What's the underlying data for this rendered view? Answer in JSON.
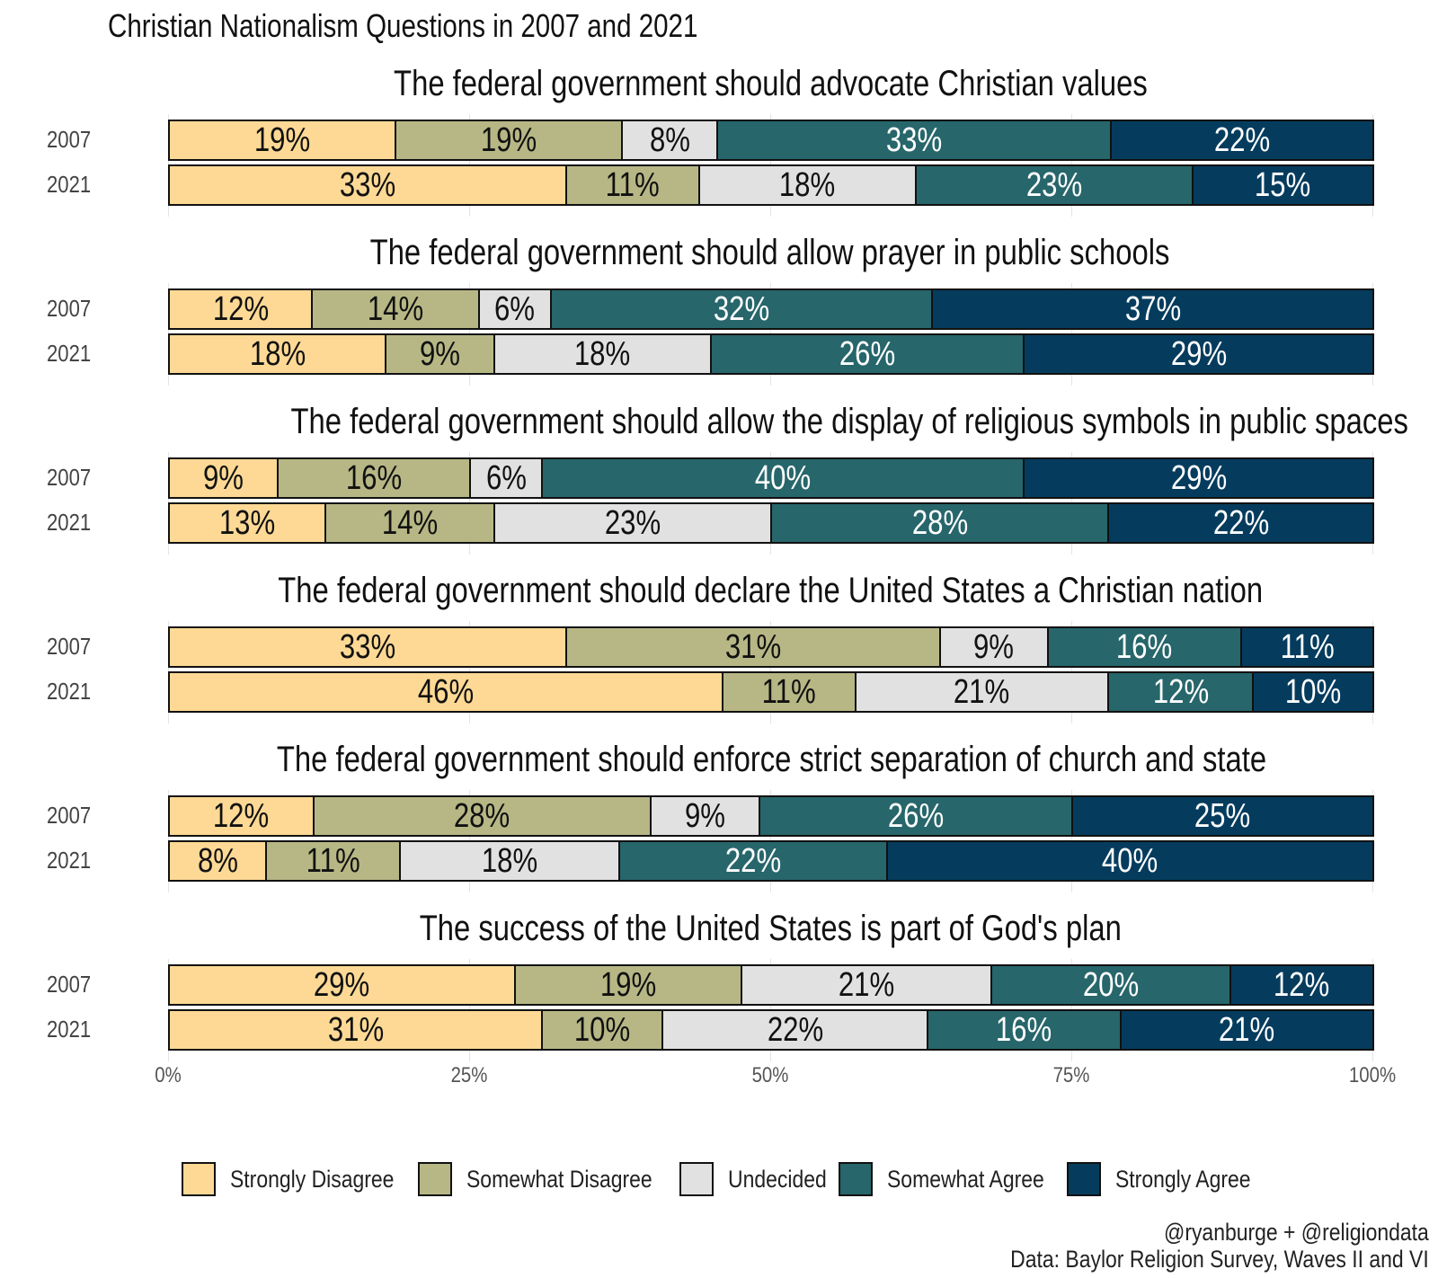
{
  "chart_data": {
    "type": "bar",
    "orientation": "horizontal-stacked-100",
    "title": "Christian Nationalism Questions in 2007 and 2021",
    "categories": [
      "Strongly Disagree",
      "Somewhat Disagree",
      "Undecided",
      "Somewhat Agree",
      "Strongly Agree"
    ],
    "colors": [
      "#FDD995",
      "#B6B785",
      "#E1E1E1",
      "#27666B",
      "#053C5E"
    ],
    "label_colors": [
      "#111111",
      "#111111",
      "#111111",
      "#ffffff",
      "#ffffff"
    ],
    "years": [
      "2007",
      "2021"
    ],
    "xticks": [
      "0%",
      "25%",
      "50%",
      "75%",
      "100%"
    ],
    "xlim": [
      0,
      100
    ],
    "facets": [
      {
        "title": "The federal government should advocate Christian values",
        "rows": [
          [
            19,
            19,
            8,
            33,
            22
          ],
          [
            33,
            11,
            18,
            23,
            15
          ]
        ]
      },
      {
        "title": "The federal government should allow prayer in public schools",
        "rows": [
          [
            12,
            14,
            6,
            32,
            37
          ],
          [
            18,
            9,
            18,
            26,
            29
          ]
        ]
      },
      {
        "title": "The federal government should allow the display of religious symbols in public spaces",
        "rows": [
          [
            9,
            16,
            6,
            40,
            29
          ],
          [
            13,
            14,
            23,
            28,
            22
          ]
        ]
      },
      {
        "title": "The federal government should declare the United States a Christian nation",
        "rows": [
          [
            33,
            31,
            9,
            16,
            11
          ],
          [
            46,
            11,
            21,
            12,
            10
          ]
        ]
      },
      {
        "title": "The federal government should enforce strict separation of church and state",
        "rows": [
          [
            12,
            28,
            9,
            26,
            25
          ],
          [
            8,
            11,
            18,
            22,
            40
          ]
        ]
      },
      {
        "title": "The success of the United States is part of God's plan",
        "rows": [
          [
            29,
            19,
            21,
            20,
            12
          ],
          [
            31,
            10,
            22,
            16,
            21
          ]
        ]
      }
    ]
  },
  "credits": [
    "@ryanburge + @religiondata",
    "Data: Baylor Religion Survey, Waves II and VI"
  ]
}
